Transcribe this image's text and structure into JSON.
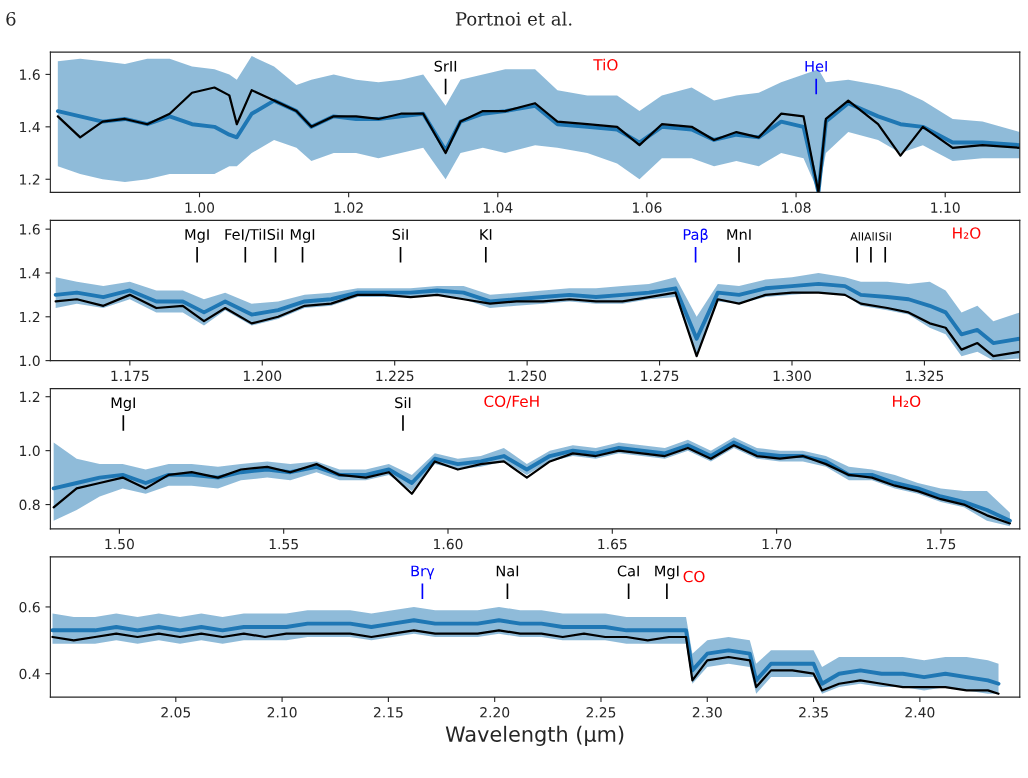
{
  "chart_data": [
    {
      "type": "line",
      "title": "Portnoi et al.",
      "annotations": [
        "6",
        "TiO"
      ],
      "ref_lines": [
        {
          "axis": "x",
          "value": 1.033,
          "label": "SrII",
          "color": "#000000"
        },
        {
          "axis": "x",
          "value": 1.0827,
          "label": "HeI",
          "color": "#0000ff"
        }
      ],
      "x": [
        0.981,
        0.984,
        0.987,
        0.99,
        0.993,
        0.996,
        0.999,
        1.002,
        1.004,
        1.005,
        1.007,
        1.01,
        1.013,
        1.015,
        1.018,
        1.021,
        1.024,
        1.027,
        1.03,
        1.033,
        1.035,
        1.038,
        1.041,
        1.045,
        1.048,
        1.052,
        1.056,
        1.059,
        1.062,
        1.066,
        1.069,
        1.072,
        1.075,
        1.078,
        1.081,
        1.083,
        1.084,
        1.087,
        1.091,
        1.094,
        1.097,
        1.101,
        1.105,
        1.11
      ],
      "series": [
        {
          "color": "#1f77b4",
          "values": [
            1.46,
            1.44,
            1.42,
            1.43,
            1.41,
            1.44,
            1.41,
            1.4,
            1.37,
            1.36,
            1.45,
            1.5,
            1.46,
            1.4,
            1.44,
            1.43,
            1.43,
            1.44,
            1.45,
            1.31,
            1.42,
            1.45,
            1.46,
            1.48,
            1.41,
            1.4,
            1.39,
            1.34,
            1.4,
            1.39,
            1.35,
            1.37,
            1.36,
            1.42,
            1.4,
            1.15,
            1.42,
            1.49,
            1.44,
            1.41,
            1.4,
            1.34,
            1.34,
            1.33
          ],
          "upper": [
            1.65,
            1.66,
            1.65,
            1.64,
            1.66,
            1.66,
            1.63,
            1.62,
            1.6,
            1.58,
            1.67,
            1.63,
            1.56,
            1.58,
            1.6,
            1.58,
            1.57,
            1.58,
            1.6,
            1.48,
            1.58,
            1.6,
            1.62,
            1.62,
            1.54,
            1.52,
            1.52,
            1.46,
            1.52,
            1.55,
            1.5,
            1.52,
            1.53,
            1.57,
            1.6,
            1.62,
            1.57,
            1.58,
            1.56,
            1.54,
            1.5,
            1.43,
            1.42,
            1.38
          ],
          "lower": [
            1.25,
            1.22,
            1.2,
            1.19,
            1.2,
            1.22,
            1.22,
            1.22,
            1.25,
            1.25,
            1.3,
            1.35,
            1.32,
            1.27,
            1.3,
            1.3,
            1.28,
            1.3,
            1.32,
            1.2,
            1.3,
            1.32,
            1.3,
            1.33,
            1.32,
            1.3,
            1.26,
            1.2,
            1.28,
            1.28,
            1.25,
            1.27,
            1.25,
            1.3,
            1.28,
            1.15,
            1.3,
            1.38,
            1.35,
            1.3,
            1.33,
            1.27,
            1.28,
            1.28
          ]
        },
        {
          "color": "#000000",
          "values": [
            1.44,
            1.36,
            1.42,
            1.43,
            1.41,
            1.45,
            1.53,
            1.55,
            1.52,
            1.41,
            1.54,
            1.5,
            1.46,
            1.4,
            1.44,
            1.44,
            1.43,
            1.45,
            1.45,
            1.3,
            1.42,
            1.46,
            1.46,
            1.49,
            1.42,
            1.41,
            1.4,
            1.33,
            1.41,
            1.4,
            1.35,
            1.38,
            1.36,
            1.45,
            1.44,
            1.15,
            1.43,
            1.5,
            1.41,
            1.29,
            1.4,
            1.32,
            1.33,
            1.32
          ]
        }
      ],
      "xlim": [
        0.98,
        1.11
      ],
      "ylim": [
        1.15,
        1.685
      ],
      "xticks": [
        {
          "value": 1.0,
          "label": "1.00"
        },
        {
          "value": 1.02,
          "label": "1.02"
        },
        {
          "value": 1.04,
          "label": "1.04"
        },
        {
          "value": 1.06,
          "label": "1.06"
        },
        {
          "value": 1.08,
          "label": "1.08"
        },
        {
          "value": 1.1,
          "label": "1.10"
        }
      ],
      "yticks": [
        1.2,
        1.4,
        1.6
      ]
    },
    {
      "type": "line",
      "annotations": [
        "H₂O"
      ],
      "ref_lines": [
        {
          "axis": "x",
          "value": 1.1877,
          "label": "MgI",
          "color": "#000000"
        },
        {
          "axis": "x",
          "value": 1.1968,
          "label": "FeI/TiI",
          "color": "#000000"
        },
        {
          "axis": "x",
          "value": 1.2025,
          "label": "SiI",
          "color": "#000000"
        },
        {
          "axis": "x",
          "value": 1.2076,
          "label": "MgI",
          "color": "#000000"
        },
        {
          "axis": "x",
          "value": 1.2261,
          "label": "SiI",
          "color": "#000000"
        },
        {
          "axis": "x",
          "value": 1.2422,
          "label": "KI",
          "color": "#000000"
        },
        {
          "axis": "x",
          "value": 1.2818,
          "label": "Paβ",
          "color": "#0000ff"
        },
        {
          "axis": "x",
          "value": 1.29,
          "label": "MnI",
          "color": "#000000"
        },
        {
          "axis": "x",
          "value": 1.3123,
          "label": "AlI",
          "color": "#000000"
        },
        {
          "axis": "x",
          "value": 1.3149,
          "label": "AlI",
          "color": "#000000"
        },
        {
          "axis": "x",
          "value": 1.3176,
          "label": "SiI",
          "color": "#000000"
        }
      ],
      "x": [
        1.161,
        1.165,
        1.17,
        1.175,
        1.18,
        1.185,
        1.189,
        1.193,
        1.198,
        1.203,
        1.208,
        1.213,
        1.218,
        1.223,
        1.228,
        1.233,
        1.238,
        1.243,
        1.248,
        1.253,
        1.258,
        1.263,
        1.268,
        1.273,
        1.278,
        1.282,
        1.286,
        1.29,
        1.295,
        1.3,
        1.305,
        1.31,
        1.313,
        1.318,
        1.322,
        1.326,
        1.329,
        1.332,
        1.335,
        1.338,
        1.343
      ],
      "series": [
        {
          "color": "#1f77b4",
          "values": [
            1.3,
            1.31,
            1.29,
            1.32,
            1.27,
            1.27,
            1.22,
            1.27,
            1.21,
            1.23,
            1.27,
            1.28,
            1.31,
            1.31,
            1.31,
            1.32,
            1.31,
            1.27,
            1.28,
            1.29,
            1.3,
            1.29,
            1.3,
            1.31,
            1.33,
            1.1,
            1.31,
            1.3,
            1.33,
            1.34,
            1.35,
            1.34,
            1.3,
            1.29,
            1.28,
            1.25,
            1.22,
            1.12,
            1.14,
            1.08,
            1.1
          ],
          "upper": [
            1.38,
            1.36,
            1.34,
            1.36,
            1.32,
            1.32,
            1.28,
            1.31,
            1.26,
            1.27,
            1.3,
            1.31,
            1.33,
            1.33,
            1.33,
            1.34,
            1.34,
            1.3,
            1.31,
            1.32,
            1.33,
            1.33,
            1.34,
            1.35,
            1.38,
            1.2,
            1.35,
            1.34,
            1.37,
            1.38,
            1.4,
            1.38,
            1.36,
            1.36,
            1.35,
            1.36,
            1.32,
            1.22,
            1.25,
            1.18,
            1.22
          ],
          "lower": [
            1.24,
            1.26,
            1.24,
            1.28,
            1.22,
            1.22,
            1.16,
            1.23,
            1.16,
            1.19,
            1.24,
            1.25,
            1.29,
            1.29,
            1.29,
            1.3,
            1.28,
            1.24,
            1.25,
            1.26,
            1.27,
            1.26,
            1.26,
            1.28,
            1.29,
            1.02,
            1.27,
            1.26,
            1.29,
            1.3,
            1.31,
            1.3,
            1.25,
            1.23,
            1.21,
            1.15,
            1.12,
            1.02,
            1.04,
            1.0,
            1.01
          ]
        },
        {
          "color": "#000000",
          "values": [
            1.27,
            1.28,
            1.25,
            1.3,
            1.24,
            1.25,
            1.18,
            1.24,
            1.17,
            1.2,
            1.25,
            1.26,
            1.3,
            1.3,
            1.29,
            1.3,
            1.28,
            1.26,
            1.27,
            1.27,
            1.28,
            1.27,
            1.27,
            1.29,
            1.31,
            1.02,
            1.28,
            1.26,
            1.3,
            1.31,
            1.31,
            1.3,
            1.26,
            1.24,
            1.22,
            1.17,
            1.15,
            1.05,
            1.08,
            1.02,
            1.04
          ]
        }
      ],
      "xlim": [
        1.16,
        1.343
      ],
      "ylim": [
        1.0,
        1.64
      ],
      "xticks": [
        {
          "value": 1.175,
          "label": "1.175"
        },
        {
          "value": 1.2,
          "label": "1.200"
        },
        {
          "value": 1.225,
          "label": "1.225"
        },
        {
          "value": 1.25,
          "label": "1.250"
        },
        {
          "value": 1.275,
          "label": "1.275"
        },
        {
          "value": 1.3,
          "label": "1.300"
        },
        {
          "value": 1.325,
          "label": "1.325"
        }
      ],
      "yticks": [
        {
          "value": 1.0,
          "label": "1.0"
        },
        1.2,
        1.4,
        1.6
      ]
    },
    {
      "type": "line",
      "annotations": [
        "CO/FeH",
        "H₂O"
      ],
      "ref_lines": [
        {
          "axis": "x",
          "value": 1.5012,
          "label": "MgI",
          "color": "#000000"
        },
        {
          "axis": "x",
          "value": 1.5863,
          "label": "SiI",
          "color": "#000000"
        }
      ],
      "x": [
        1.48,
        1.487,
        1.494,
        1.501,
        1.508,
        1.515,
        1.522,
        1.53,
        1.537,
        1.545,
        1.552,
        1.56,
        1.567,
        1.575,
        1.582,
        1.589,
        1.596,
        1.603,
        1.61,
        1.617,
        1.624,
        1.631,
        1.638,
        1.645,
        1.652,
        1.659,
        1.666,
        1.673,
        1.68,
        1.687,
        1.694,
        1.701,
        1.708,
        1.715,
        1.722,
        1.729,
        1.736,
        1.743,
        1.75,
        1.757,
        1.764,
        1.771
      ],
      "series": [
        {
          "color": "#1f77b4",
          "values": [
            0.86,
            0.88,
            0.9,
            0.91,
            0.88,
            0.91,
            0.91,
            0.9,
            0.92,
            0.93,
            0.92,
            0.94,
            0.91,
            0.91,
            0.93,
            0.88,
            0.97,
            0.95,
            0.96,
            0.98,
            0.93,
            0.98,
            1.0,
            0.99,
            1.01,
            1.0,
            0.99,
            1.02,
            0.98,
            1.03,
            0.99,
            0.98,
            0.98,
            0.96,
            0.91,
            0.91,
            0.88,
            0.86,
            0.83,
            0.81,
            0.78,
            0.74
          ],
          "upper": [
            1.03,
            0.97,
            0.95,
            0.95,
            0.93,
            0.95,
            0.95,
            0.94,
            0.95,
            0.96,
            0.95,
            0.96,
            0.93,
            0.93,
            0.95,
            0.91,
            0.99,
            0.97,
            0.98,
            1.01,
            0.95,
            1.0,
            1.02,
            1.01,
            1.03,
            1.02,
            1.01,
            1.04,
            1.0,
            1.05,
            1.01,
            1.0,
            1.0,
            0.98,
            0.94,
            0.93,
            0.91,
            0.88,
            0.86,
            0.85,
            0.85,
            0.77
          ],
          "lower": [
            0.74,
            0.78,
            0.83,
            0.86,
            0.84,
            0.87,
            0.87,
            0.86,
            0.89,
            0.9,
            0.89,
            0.92,
            0.89,
            0.89,
            0.91,
            0.85,
            0.95,
            0.93,
            0.94,
            0.96,
            0.91,
            0.96,
            0.98,
            0.97,
            0.99,
            0.98,
            0.97,
            1.0,
            0.96,
            1.01,
            0.97,
            0.96,
            0.96,
            0.94,
            0.89,
            0.89,
            0.86,
            0.84,
            0.81,
            0.79,
            0.74,
            0.72
          ]
        },
        {
          "color": "#000000",
          "values": [
            0.79,
            0.86,
            0.88,
            0.9,
            0.86,
            0.91,
            0.92,
            0.9,
            0.93,
            0.94,
            0.92,
            0.95,
            0.91,
            0.9,
            0.92,
            0.84,
            0.96,
            0.93,
            0.95,
            0.96,
            0.9,
            0.96,
            0.99,
            0.98,
            1.0,
            0.99,
            0.98,
            1.01,
            0.97,
            1.02,
            0.98,
            0.97,
            0.98,
            0.95,
            0.91,
            0.9,
            0.87,
            0.85,
            0.82,
            0.8,
            0.76,
            0.73
          ]
        }
      ],
      "xlim": [
        1.479,
        1.774
      ],
      "ylim": [
        0.71,
        1.23
      ],
      "xticks": [
        {
          "value": 1.5,
          "label": "1.50"
        },
        {
          "value": 1.55,
          "label": "1.55"
        },
        {
          "value": 1.6,
          "label": "1.60"
        },
        {
          "value": 1.65,
          "label": "1.65"
        },
        {
          "value": 1.7,
          "label": "1.70"
        },
        {
          "value": 1.75,
          "label": "1.75"
        }
      ],
      "yticks": [
        0.8,
        {
          "value": 1.0,
          "label": "1.0"
        },
        1.2
      ]
    },
    {
      "type": "line",
      "xlabel": "Wavelength (μm)",
      "annotations": [
        "CO"
      ],
      "ref_lines": [
        {
          "axis": "x",
          "value": 2.166,
          "label": "Brγ",
          "color": "#0000ff"
        },
        {
          "axis": "x",
          "value": 2.206,
          "label": "NaI",
          "color": "#000000"
        },
        {
          "axis": "x",
          "value": 2.263,
          "label": "CaI",
          "color": "#000000"
        },
        {
          "axis": "x",
          "value": 2.281,
          "label": "MgI",
          "color": "#000000"
        }
      ],
      "x": [
        1.992,
        2.002,
        2.012,
        2.022,
        2.032,
        2.042,
        2.052,
        2.062,
        2.072,
        2.082,
        2.092,
        2.102,
        2.112,
        2.122,
        2.132,
        2.142,
        2.152,
        2.162,
        2.172,
        2.182,
        2.192,
        2.202,
        2.212,
        2.222,
        2.232,
        2.242,
        2.252,
        2.262,
        2.272,
        2.282,
        2.29,
        2.293,
        2.3,
        2.31,
        2.32,
        2.323,
        2.33,
        2.34,
        2.35,
        2.354,
        2.362,
        2.372,
        2.382,
        2.392,
        2.402,
        2.412,
        2.422,
        2.432,
        2.437
      ],
      "series": [
        {
          "color": "#1f77b4",
          "values": [
            0.53,
            0.53,
            0.53,
            0.54,
            0.53,
            0.54,
            0.53,
            0.54,
            0.53,
            0.54,
            0.54,
            0.54,
            0.55,
            0.55,
            0.55,
            0.54,
            0.55,
            0.56,
            0.55,
            0.55,
            0.55,
            0.56,
            0.55,
            0.55,
            0.54,
            0.54,
            0.54,
            0.53,
            0.53,
            0.53,
            0.53,
            0.41,
            0.46,
            0.47,
            0.46,
            0.38,
            0.43,
            0.43,
            0.43,
            0.37,
            0.4,
            0.41,
            0.4,
            0.4,
            0.39,
            0.4,
            0.39,
            0.38,
            0.37
          ],
          "upper": [
            0.58,
            0.57,
            0.57,
            0.58,
            0.57,
            0.58,
            0.57,
            0.58,
            0.57,
            0.58,
            0.58,
            0.58,
            0.59,
            0.59,
            0.59,
            0.58,
            0.59,
            0.6,
            0.59,
            0.59,
            0.59,
            0.6,
            0.59,
            0.59,
            0.58,
            0.58,
            0.58,
            0.57,
            0.57,
            0.57,
            0.57,
            0.46,
            0.5,
            0.51,
            0.5,
            0.43,
            0.47,
            0.47,
            0.47,
            0.42,
            0.45,
            0.45,
            0.45,
            0.45,
            0.44,
            0.45,
            0.45,
            0.44,
            0.43
          ],
          "lower": [
            0.49,
            0.49,
            0.49,
            0.5,
            0.49,
            0.5,
            0.49,
            0.5,
            0.49,
            0.5,
            0.5,
            0.5,
            0.51,
            0.51,
            0.51,
            0.5,
            0.51,
            0.52,
            0.51,
            0.51,
            0.51,
            0.52,
            0.51,
            0.51,
            0.5,
            0.5,
            0.5,
            0.49,
            0.49,
            0.49,
            0.49,
            0.37,
            0.42,
            0.43,
            0.42,
            0.34,
            0.39,
            0.39,
            0.39,
            0.34,
            0.36,
            0.37,
            0.36,
            0.36,
            0.35,
            0.36,
            0.35,
            0.34,
            0.34
          ]
        },
        {
          "color": "#000000",
          "values": [
            0.51,
            0.5,
            0.51,
            0.52,
            0.51,
            0.52,
            0.51,
            0.52,
            0.51,
            0.52,
            0.51,
            0.52,
            0.52,
            0.52,
            0.52,
            0.51,
            0.52,
            0.53,
            0.52,
            0.52,
            0.52,
            0.53,
            0.52,
            0.52,
            0.51,
            0.52,
            0.51,
            0.51,
            0.5,
            0.51,
            0.51,
            0.38,
            0.44,
            0.45,
            0.44,
            0.36,
            0.41,
            0.41,
            0.4,
            0.35,
            0.37,
            0.38,
            0.37,
            0.36,
            0.36,
            0.36,
            0.35,
            0.35,
            0.34
          ]
        }
      ],
      "xlim": [
        1.991,
        2.447
      ],
      "ylim": [
        0.33,
        0.75
      ],
      "xticks": [
        {
          "value": 2.05,
          "label": "2.05"
        },
        {
          "value": 2.1,
          "label": "2.10"
        },
        {
          "value": 2.15,
          "label": "2.15"
        },
        {
          "value": 2.2,
          "label": "2.20"
        },
        {
          "value": 2.25,
          "label": "2.25"
        },
        {
          "value": 2.3,
          "label": "2.30"
        },
        {
          "value": 2.35,
          "label": "2.35"
        },
        {
          "value": 2.4,
          "label": "2.40"
        }
      ],
      "yticks": [
        0.4,
        0.6
      ]
    }
  ]
}
